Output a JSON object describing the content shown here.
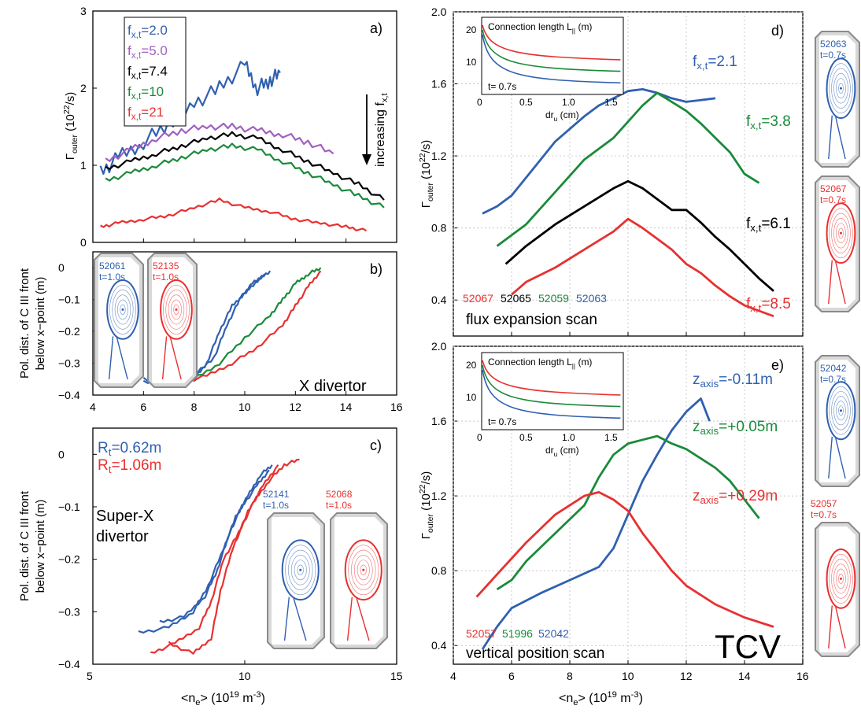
{
  "colors": {
    "blue": "#3060b0",
    "purple": "#a060c0",
    "black": "#000000",
    "green": "#1a8a3a",
    "red": "#e83030",
    "grey": "#808080"
  },
  "chart_data": [
    {
      "id": "a",
      "type": "line",
      "panel_label": "a)",
      "ylabel_main": "Γ",
      "ylabel_sub": "outer",
      "ylabel_unit": " (10",
      "ylabel_exp": "22",
      "ylabel_tail": "/s)",
      "xlim": [
        4,
        16
      ],
      "ylim": [
        0,
        3
      ],
      "yticks": [
        "0",
        "1",
        "2",
        "3"
      ],
      "annotation": "increasing f",
      "annotation_sub": "x,t",
      "legend": [
        {
          "text": "f",
          "sub": "x,t",
          "value": "=2.0",
          "color": "blue"
        },
        {
          "text": "f",
          "sub": "x,t",
          "value": "=5.0",
          "color": "purple"
        },
        {
          "text": "f",
          "sub": "x,t",
          "value": "=7.4",
          "color": "black"
        },
        {
          "text": "f",
          "sub": "x,t",
          "value": "=10",
          "color": "green"
        },
        {
          "text": "f",
          "sub": "x,t",
          "value": "=21",
          "color": "red"
        }
      ],
      "series": [
        {
          "color": "blue",
          "x": [
            4.3,
            5,
            6,
            7,
            8,
            9,
            10,
            10.5,
            11,
            11.4
          ],
          "y": [
            0.9,
            1.1,
            1.3,
            1.55,
            1.8,
            2.0,
            2.3,
            2.0,
            2.1,
            2.2
          ]
        },
        {
          "color": "purple",
          "x": [
            4.5,
            5.5,
            6.5,
            7.5,
            8.5,
            9.5,
            10.5,
            11.5,
            12.5,
            13.5
          ],
          "y": [
            1.05,
            1.2,
            1.35,
            1.45,
            1.5,
            1.5,
            1.45,
            1.4,
            1.3,
            1.15
          ]
        },
        {
          "color": "black",
          "x": [
            4.5,
            5.5,
            6.5,
            7.5,
            8.5,
            9.5,
            10.5,
            11.5,
            12.5,
            13.5,
            14.5,
            15.5
          ],
          "y": [
            0.95,
            1.05,
            1.15,
            1.25,
            1.35,
            1.4,
            1.35,
            1.2,
            1.05,
            0.9,
            0.75,
            0.55
          ]
        },
        {
          "color": "green",
          "x": [
            4.5,
            5.5,
            6.5,
            7.5,
            8.5,
            9.5,
            10.5,
            11.5,
            12.5,
            13.5,
            14.5,
            15.5
          ],
          "y": [
            0.8,
            0.9,
            1.0,
            1.1,
            1.2,
            1.25,
            1.2,
            1.05,
            0.9,
            0.75,
            0.6,
            0.45
          ]
        },
        {
          "color": "red",
          "x": [
            4.3,
            5,
            6,
            7,
            8,
            9,
            10,
            11,
            12,
            13,
            14,
            14.8
          ],
          "y": [
            0.2,
            0.25,
            0.3,
            0.35,
            0.45,
            0.55,
            0.45,
            0.4,
            0.3,
            0.25,
            0.2,
            0.15
          ]
        }
      ]
    },
    {
      "id": "b",
      "type": "line",
      "panel_label": "b)",
      "ylabel_lines": [
        "Pol. dist. of C III front",
        "below x−point (m)"
      ],
      "annotation": "X divertor",
      "xlim": [
        4,
        16
      ],
      "ylim": [
        -0.4,
        0.05
      ],
      "xticks": [
        "4",
        "6",
        "8",
        "10",
        "12",
        "14",
        "16"
      ],
      "yticks": [
        "−0.4",
        "−0.3",
        "−0.2",
        "−0.1",
        "0"
      ],
      "ytick_values": [
        -0.4,
        -0.3,
        -0.2,
        -0.1,
        0
      ],
      "insets": [
        {
          "shot": "52061",
          "time": "t=1.0s",
          "color": "blue"
        },
        {
          "shot": "52135",
          "time": "t=1.0s",
          "color": "red"
        }
      ],
      "series": [
        {
          "color": "blue",
          "x": [
            6,
            7,
            8,
            8.5,
            9,
            9.5,
            10,
            10.5,
            11
          ],
          "y": [
            -0.36,
            -0.36,
            -0.35,
            -0.3,
            -0.2,
            -0.12,
            -0.08,
            -0.04,
            -0.01
          ]
        },
        {
          "color": "blue",
          "x": [
            6,
            7,
            8,
            8.8,
            9.3,
            9.8,
            10.3,
            10.8
          ],
          "y": [
            -0.35,
            -0.37,
            -0.34,
            -0.28,
            -0.18,
            -0.1,
            -0.05,
            -0.02
          ]
        },
        {
          "color": "green",
          "x": [
            7,
            8,
            9,
            10,
            11,
            11.5,
            12,
            12.5,
            13
          ],
          "y": [
            -0.36,
            -0.35,
            -0.3,
            -0.22,
            -0.15,
            -0.1,
            -0.05,
            -0.02,
            0
          ]
        },
        {
          "color": "red",
          "x": [
            7.5,
            8.5,
            9.5,
            10.5,
            11.5,
            12,
            12.5,
            13
          ],
          "y": [
            -0.36,
            -0.34,
            -0.3,
            -0.25,
            -0.18,
            -0.12,
            -0.06,
            -0.01
          ]
        }
      ]
    },
    {
      "id": "c",
      "type": "line",
      "panel_label": "c)",
      "ylabel_lines": [
        "Pol. dist. of C III front",
        "below x−point (m)"
      ],
      "xlabel_main": "<n",
      "xlabel_sub": "e",
      "xlabel_rest": "> (10",
      "xlabel_exp": "19",
      "xlabel_unit": " m",
      "xlabel_exp2": "-3",
      "xlabel_tail": ")",
      "annotation_lines": [
        "Super-X",
        "divertor"
      ],
      "xlim": [
        5,
        15
      ],
      "ylim": [
        -0.4,
        0.05
      ],
      "xticks": [
        "5",
        "10",
        "15"
      ],
      "xtick_values": [
        5,
        10,
        15
      ],
      "yticks": [
        "−0.4",
        "−0.3",
        "−0.2",
        "−0.1",
        "0"
      ],
      "ytick_values": [
        -0.4,
        -0.3,
        -0.2,
        -0.1,
        0
      ],
      "legend": [
        {
          "text": "R",
          "sub": "t",
          "value": "=0.62m",
          "color": "blue"
        },
        {
          "text": "R",
          "sub": "t",
          "value": "=1.06m",
          "color": "red"
        }
      ],
      "insets": [
        {
          "shot": "52141",
          "time": "t=1.0s",
          "color": "blue"
        },
        {
          "shot": "52068",
          "time": "t=1.0s",
          "color": "red"
        }
      ],
      "series": [
        {
          "color": "blue",
          "x": [
            6.5,
            7.5,
            8.3,
            8.8,
            9.3,
            9.7,
            10.1,
            10.5,
            10.9
          ],
          "y": [
            -0.34,
            -0.33,
            -0.3,
            -0.25,
            -0.18,
            -0.12,
            -0.08,
            -0.04,
            -0.02
          ]
        },
        {
          "color": "blue",
          "x": [
            7.2,
            8,
            8.7,
            9.1,
            9.5,
            9.9,
            10.4,
            10.8
          ],
          "y": [
            -0.32,
            -0.31,
            -0.27,
            -0.22,
            -0.15,
            -0.1,
            -0.06,
            -0.03
          ]
        },
        {
          "color": "red",
          "x": [
            6.9,
            7.7,
            8.5,
            8.9,
            9.3,
            9.8,
            10.3,
            10.8,
            11.3,
            11.8
          ],
          "y": [
            -0.38,
            -0.36,
            -0.33,
            -0.28,
            -0.2,
            -0.15,
            -0.09,
            -0.05,
            -0.02,
            -0.01
          ]
        },
        {
          "color": "red",
          "x": [
            7.5,
            8.3,
            8.9,
            9.2,
            9.6,
            10.1,
            10.6,
            11.1
          ],
          "y": [
            -0.36,
            -0.38,
            -0.35,
            -0.26,
            -0.18,
            -0.11,
            -0.06,
            -0.02
          ]
        }
      ]
    },
    {
      "id": "d",
      "type": "line",
      "panel_label": "d)",
      "ylabel_main": "Γ",
      "ylabel_sub": "outer",
      "ylabel_unit": " (10",
      "ylabel_exp": "22",
      "ylabel_tail": "/s)",
      "annotation": "flux expansion scan",
      "xlim": [
        4,
        16
      ],
      "ylim": [
        0.2,
        2.0
      ],
      "yticks": [
        "0.4",
        "0.8",
        "1.2",
        "1.6",
        "2.0"
      ],
      "ytick_values": [
        0.4,
        0.8,
        1.2,
        1.6,
        2.0
      ],
      "shots": [
        {
          "label": "52067",
          "color": "red"
        },
        {
          "label": "52065",
          "color": "black"
        },
        {
          "label": "52059",
          "color": "green"
        },
        {
          "label": "52063",
          "color": "blue"
        }
      ],
      "labels": [
        {
          "text": "f",
          "sub": "x,t",
          "value": "=2.1",
          "color": "blue"
        },
        {
          "text": "f",
          "sub": "x,t",
          "value": "=3.8",
          "color": "green"
        },
        {
          "text": "f",
          "sub": "x,t",
          "value": "=6.1",
          "color": "black"
        },
        {
          "text": "f",
          "sub": "x,t",
          "value": "=8.5",
          "color": "red"
        }
      ],
      "inset": {
        "title": "Connection length L",
        "title_sub": "||",
        "title_tail": " (m)",
        "xlabel": "dr",
        "xlabel_sub": "u",
        "xlabel_tail": " (cm)",
        "time": "t= 0.7s",
        "xticks": [
          "0",
          "0.5",
          "1.0",
          "1.5"
        ],
        "yticks": [
          "10",
          "20"
        ]
      },
      "side_insets": [
        {
          "shot": "52063",
          "time": "t=0.7s",
          "color": "blue"
        },
        {
          "shot": "52067",
          "time": "t=0.7s",
          "color": "red"
        }
      ],
      "series": [
        {
          "color": "blue",
          "x": [
            5,
            5.5,
            6,
            6.5,
            7,
            7.5,
            8,
            8.5,
            9,
            9.5,
            10,
            10.5,
            11,
            11.5,
            12,
            12.5,
            13
          ],
          "y": [
            0.88,
            0.92,
            0.98,
            1.08,
            1.18,
            1.28,
            1.35,
            1.42,
            1.48,
            1.52,
            1.56,
            1.57,
            1.55,
            1.52,
            1.5,
            1.51,
            1.52
          ]
        },
        {
          "color": "green",
          "x": [
            5.5,
            6.5,
            7.5,
            8.5,
            9.5,
            10.5,
            11,
            11.5,
            12,
            12.5,
            13,
            13.5,
            14,
            14.5
          ],
          "y": [
            0.7,
            0.82,
            1.0,
            1.18,
            1.3,
            1.48,
            1.55,
            1.5,
            1.45,
            1.38,
            1.3,
            1.22,
            1.1,
            1.05
          ]
        },
        {
          "color": "black",
          "x": [
            5.8,
            6.5,
            7.5,
            8.5,
            9.5,
            10,
            10.5,
            11,
            11.5,
            12,
            12.5,
            13,
            13.5,
            14,
            14.5,
            15
          ],
          "y": [
            0.6,
            0.7,
            0.82,
            0.92,
            1.02,
            1.06,
            1.02,
            0.96,
            0.9,
            0.9,
            0.83,
            0.75,
            0.68,
            0.6,
            0.52,
            0.45
          ]
        },
        {
          "color": "red",
          "x": [
            6,
            6.5,
            7.5,
            8.5,
            9.5,
            10,
            10.5,
            11,
            11.5,
            12,
            12.5,
            13,
            13.5,
            14,
            14.5,
            15
          ],
          "y": [
            0.43,
            0.5,
            0.58,
            0.68,
            0.78,
            0.85,
            0.8,
            0.74,
            0.68,
            0.6,
            0.55,
            0.48,
            0.42,
            0.37,
            0.34,
            0.31
          ]
        }
      ]
    },
    {
      "id": "e",
      "type": "line",
      "panel_label": "e)",
      "ylabel_main": "Γ",
      "ylabel_sub": "outer",
      "ylabel_unit": " (10",
      "ylabel_exp": "22",
      "ylabel_tail": "/s)",
      "xlabel_main": "<n",
      "xlabel_sub": "e",
      "xlabel_rest": "> (10",
      "xlabel_exp": "19",
      "xlabel_unit": " m",
      "xlabel_exp2": "-3",
      "xlabel_tail": ")",
      "annotation": "vertical position scan",
      "big_label": "TCV",
      "xlim": [
        4,
        16
      ],
      "ylim": [
        0.3,
        2.0
      ],
      "xticks": [
        "4",
        "6",
        "8",
        "10",
        "12",
        "14",
        "16"
      ],
      "yticks": [
        "0.4",
        "0.8",
        "1.2",
        "1.6",
        "2.0"
      ],
      "ytick_values": [
        0.4,
        0.8,
        1.2,
        1.6,
        2.0
      ],
      "shots": [
        {
          "label": "52057",
          "color": "red"
        },
        {
          "label": "51996",
          "color": "green"
        },
        {
          "label": "52042",
          "color": "blue"
        }
      ],
      "labels": [
        {
          "text": "z",
          "sub": "axis",
          "value": "=-0.11m",
          "color": "blue"
        },
        {
          "text": "z",
          "sub": "axis",
          "value": "=+0.05m",
          "color": "green"
        },
        {
          "text": "z",
          "sub": "axis",
          "value": "=+0.29m",
          "color": "red"
        }
      ],
      "inset": {
        "title": "Connection length L",
        "title_sub": "||",
        "title_tail": " (m)",
        "xlabel": "dr",
        "xlabel_sub": "u",
        "xlabel_tail": " (cm)",
        "time": "t= 0.7s",
        "xticks": [
          "0",
          "0.5",
          "1.0",
          "1.5"
        ],
        "yticks": [
          "10",
          "20"
        ]
      },
      "side_insets": [
        {
          "shot": "52042",
          "time": "t=0.7s",
          "color": "blue"
        },
        {
          "shot": "52057",
          "time": "t=0.7s",
          "color": "red"
        }
      ],
      "series": [
        {
          "color": "blue",
          "x": [
            5,
            5.5,
            6,
            7,
            8,
            9,
            9.5,
            10,
            10.5,
            11,
            11.5,
            12,
            12.5,
            12.8
          ],
          "y": [
            0.38,
            0.5,
            0.6,
            0.68,
            0.75,
            0.82,
            0.92,
            1.1,
            1.28,
            1.42,
            1.55,
            1.65,
            1.72,
            1.6
          ]
        },
        {
          "color": "green",
          "x": [
            5.5,
            6,
            6.5,
            7.5,
            8.5,
            9,
            9.5,
            10,
            10.5,
            11,
            11.5,
            12,
            12.5,
            13,
            13.5,
            14,
            14.5
          ],
          "y": [
            0.7,
            0.75,
            0.85,
            1.0,
            1.15,
            1.3,
            1.42,
            1.48,
            1.5,
            1.52,
            1.48,
            1.45,
            1.4,
            1.35,
            1.28,
            1.18,
            1.08
          ]
        },
        {
          "color": "red",
          "x": [
            4.8,
            5.5,
            6.5,
            7.5,
            8.5,
            9,
            9.5,
            10,
            10.5,
            11,
            11.5,
            12,
            13,
            14,
            15
          ],
          "y": [
            0.66,
            0.78,
            0.95,
            1.1,
            1.2,
            1.22,
            1.18,
            1.12,
            1.0,
            0.9,
            0.8,
            0.72,
            0.62,
            0.55,
            0.5
          ]
        }
      ]
    }
  ]
}
